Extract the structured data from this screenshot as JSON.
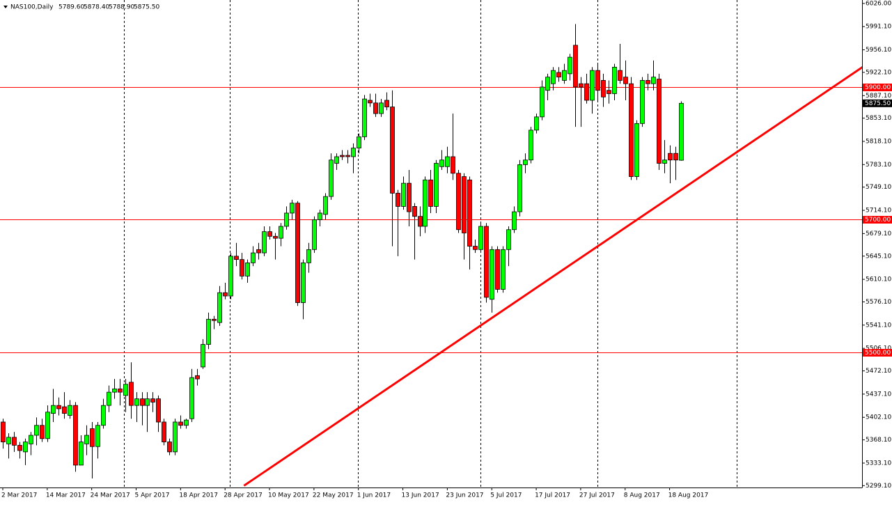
{
  "chart_data": {
    "type": "candlestick",
    "header": {
      "symbol": "NAS100,Daily",
      "ohlc_labels": [
        "5789.60",
        "5878.40",
        "5788.90",
        "5875.50"
      ]
    },
    "categories": [
      "2 Mar 2017",
      null,
      null,
      null,
      null,
      null,
      null,
      null,
      "14 Mar 2017",
      null,
      null,
      null,
      null,
      null,
      null,
      null,
      "24 Mar 2017",
      null,
      null,
      null,
      null,
      null,
      null,
      null,
      "5 Apr 2017",
      null,
      null,
      null,
      null,
      null,
      null,
      null,
      "18 Apr 2017",
      null,
      null,
      null,
      null,
      null,
      null,
      null,
      "28 Apr 2017",
      null,
      null,
      null,
      null,
      null,
      null,
      null,
      "10 May 2017",
      null,
      null,
      null,
      null,
      null,
      null,
      null,
      "22 May 2017",
      null,
      null,
      null,
      null,
      null,
      null,
      null,
      "1 Jun 2017",
      null,
      null,
      null,
      null,
      null,
      null,
      null,
      "13 Jun 2017",
      null,
      null,
      null,
      null,
      null,
      null,
      null,
      "23 Jun 2017",
      null,
      null,
      null,
      null,
      null,
      null,
      null,
      "5 Jul 2017",
      null,
      null,
      null,
      null,
      null,
      null,
      null,
      "17 Jul 2017",
      null,
      null,
      null,
      null,
      null,
      null,
      null,
      "27 Jul 2017",
      null,
      null,
      null,
      null,
      null,
      null,
      null,
      "8 Aug 2017",
      null,
      null,
      null,
      null,
      null,
      null,
      null,
      "18 Aug 2017",
      null,
      null
    ],
    "open": [
      5395,
      5362,
      5372,
      5360,
      5350,
      5362,
      5375,
      5390,
      5370,
      5408,
      5420,
      5418,
      5405,
      5420,
      5330,
      5362,
      5385,
      5358,
      5390,
      5420,
      5440,
      5445,
      5435,
      5455,
      5420,
      5430,
      5420,
      5430,
      5430,
      5395,
      5365,
      5350,
      5395,
      5390,
      5400,
      5465,
      5478,
      5512,
      5550,
      5545,
      5590,
      5585,
      5645,
      5640,
      5615,
      5635,
      5655,
      5650,
      5682,
      5675,
      5672,
      5690,
      5710,
      5725,
      5575,
      5635,
      5655,
      5700,
      5708,
      5735,
      5785,
      5797,
      5797,
      5795,
      5808,
      5825,
      5880,
      5876,
      5860,
      5880,
      5870,
      5740,
      5720,
      5755,
      5720,
      5705,
      5690,
      5760,
      5720,
      5780,
      5780,
      5795,
      5770,
      5765,
      5760,
      5660,
      5655,
      5690,
      5580,
      5655,
      5595,
      5655,
      5685,
      5712,
      5783,
      5790,
      5835,
      5855,
      5895,
      5905,
      5922,
      5910,
      5920,
      5963,
      5905,
      5905,
      5880,
      5925,
      5910,
      5895,
      5890,
      5925,
      5915,
      5905,
      5765,
      5845,
      5910,
      5905,
      5912,
      5785,
      5800,
      5800,
      5789.6
    ],
    "high": [
      5400,
      5378,
      5380,
      5365,
      5370,
      5380,
      5402,
      5400,
      5420,
      5445,
      5432,
      5440,
      5428,
      5425,
      5375,
      5390,
      5395,
      5395,
      5430,
      5450,
      5460,
      5460,
      5460,
      5485,
      5440,
      5440,
      5440,
      5440,
      5435,
      5400,
      5370,
      5400,
      5405,
      5400,
      5475,
      5475,
      5520,
      5560,
      5555,
      5600,
      5605,
      5650,
      5665,
      5650,
      5640,
      5660,
      5665,
      5690,
      5690,
      5680,
      5695,
      5720,
      5730,
      5728,
      5640,
      5665,
      5705,
      5715,
      5740,
      5800,
      5800,
      5805,
      5805,
      5815,
      5830,
      5888,
      5890,
      5890,
      5882,
      5892,
      5895,
      5745,
      5765,
      5775,
      5725,
      5720,
      5765,
      5775,
      5790,
      5805,
      5810,
      5860,
      5775,
      5770,
      5765,
      5670,
      5695,
      5695,
      5660,
      5660,
      5660,
      5690,
      5720,
      5790,
      5800,
      5840,
      5860,
      5910,
      5920,
      5930,
      5930,
      5935,
      5950,
      5995,
      5915,
      5920,
      5930,
      5935,
      5920,
      5910,
      5935,
      5965,
      5940,
      5915,
      5850,
      5915,
      5920,
      5940,
      5920,
      5820,
      5812,
      5810,
      5878.4
    ],
    "low": [
      5355,
      5340,
      5350,
      5340,
      5330,
      5345,
      5360,
      5365,
      5365,
      5395,
      5405,
      5400,
      5400,
      5320,
      5330,
      5345,
      5310,
      5340,
      5385,
      5410,
      5430,
      5420,
      5410,
      5400,
      5395,
      5390,
      5380,
      5410,
      5380,
      5360,
      5345,
      5345,
      5385,
      5385,
      5395,
      5450,
      5475,
      5505,
      5535,
      5540,
      5580,
      5580,
      5630,
      5610,
      5605,
      5630,
      5640,
      5645,
      5670,
      5640,
      5660,
      5685,
      5700,
      5570,
      5550,
      5620,
      5650,
      5690,
      5700,
      5730,
      5775,
      5790,
      5785,
      5770,
      5800,
      5820,
      5870,
      5855,
      5855,
      5865,
      5660,
      5645,
      5715,
      5690,
      5640,
      5675,
      5680,
      5710,
      5710,
      5775,
      5770,
      5760,
      5680,
      5640,
      5625,
      5650,
      5650,
      5575,
      5560,
      5590,
      5590,
      5630,
      5680,
      5705,
      5770,
      5785,
      5830,
      5850,
      5880,
      5895,
      5908,
      5905,
      5910,
      5840,
      5840,
      5875,
      5860,
      5880,
      5870,
      5875,
      5880,
      5905,
      5880,
      5760,
      5760,
      5840,
      5895,
      5895,
      5775,
      5770,
      5755,
      5760,
      5788.9
    ],
    "close": [
      5365,
      5372,
      5360,
      5352,
      5365,
      5375,
      5390,
      5370,
      5410,
      5420,
      5415,
      5408,
      5420,
      5330,
      5365,
      5375,
      5358,
      5390,
      5420,
      5440,
      5445,
      5440,
      5452,
      5420,
      5430,
      5420,
      5430,
      5425,
      5395,
      5365,
      5350,
      5395,
      5390,
      5398,
      5462,
      5460,
      5512,
      5550,
      5548,
      5590,
      5585,
      5645,
      5640,
      5615,
      5635,
      5650,
      5650,
      5682,
      5675,
      5672,
      5690,
      5710,
      5725,
      5575,
      5635,
      5655,
      5700,
      5710,
      5735,
      5790,
      5795,
      5795,
      5795,
      5808,
      5825,
      5882,
      5876,
      5860,
      5876,
      5870,
      5740,
      5720,
      5755,
      5712,
      5705,
      5690,
      5760,
      5720,
      5785,
      5790,
      5795,
      5770,
      5685,
      5680,
      5660,
      5655,
      5690,
      5583,
      5655,
      5595,
      5655,
      5685,
      5712,
      5783,
      5790,
      5835,
      5855,
      5900,
      5915,
      5925,
      5915,
      5925,
      5945,
      5900,
      5900,
      5880,
      5925,
      5895,
      5885,
      5890,
      5930,
      5910,
      5905,
      5765,
      5845,
      5910,
      5905,
      5915,
      5785,
      5790,
      5790,
      5790,
      5875.5
    ],
    "bull_color": "#00ff00",
    "bear_color": "#ff0000",
    "ylim": [
      5296.3,
      6031.2
    ],
    "yticks": [
      {
        "value": 6026,
        "label": "6026.00"
      },
      {
        "value": 5991.1,
        "label": "5991.10"
      },
      {
        "value": 5956.1,
        "label": "5956.10"
      },
      {
        "value": 5922.1,
        "label": "5922.10"
      },
      {
        "value": 5887.1,
        "label": "5887.10"
      },
      {
        "value": 5853.1,
        "label": "5853.10"
      },
      {
        "value": 5818.1,
        "label": "5818.10"
      },
      {
        "value": 5783.1,
        "label": "5783.10"
      },
      {
        "value": 5749.1,
        "label": "5749.10"
      },
      {
        "value": 5714.1,
        "label": "5714.10"
      },
      {
        "value": 5679.1,
        "label": "5679.10"
      },
      {
        "value": 5645.1,
        "label": "5645.10"
      },
      {
        "value": 5610.1,
        "label": "5610.10"
      },
      {
        "value": 5576.1,
        "label": "5576.10"
      },
      {
        "value": 5541.1,
        "label": "5541.10"
      },
      {
        "value": 5506.1,
        "label": "5506.10"
      },
      {
        "value": 5472.1,
        "label": "5472.10"
      },
      {
        "value": 5437.1,
        "label": "5437.10"
      },
      {
        "value": 5402.1,
        "label": "5402.10"
      },
      {
        "value": 5368.1,
        "label": "5368.10"
      },
      {
        "value": 5333.1,
        "label": "5333.10"
      },
      {
        "value": 5299.1,
        "label": "5299.10"
      }
    ],
    "levels": [
      {
        "value": 5900,
        "label": "5900.00"
      },
      {
        "value": 5700,
        "label": "5700.00"
      },
      {
        "value": 5500,
        "label": "5500.00"
      }
    ],
    "level_color": "#ff0000",
    "current_price": {
      "value": 5875.5,
      "label": "5875.50"
    },
    "trendline": {
      "x": [
        43.4,
        160
      ],
      "values": [
        5299,
        5960
      ],
      "color": "#ff0000"
    }
  }
}
